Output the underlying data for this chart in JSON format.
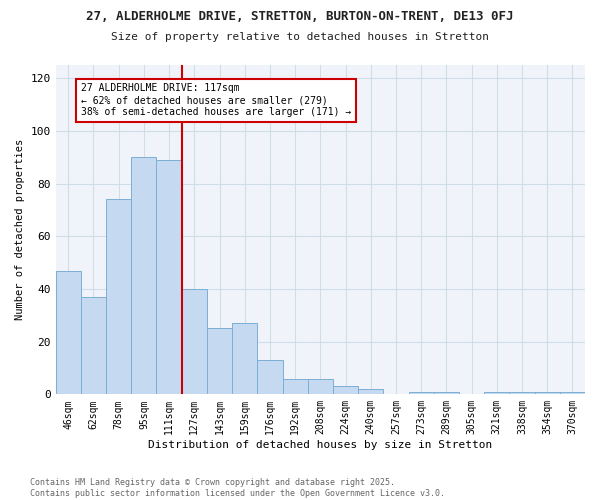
{
  "title": "27, ALDERHOLME DRIVE, STRETTON, BURTON-ON-TRENT, DE13 0FJ",
  "subtitle": "Size of property relative to detached houses in Stretton",
  "xlabel": "Distribution of detached houses by size in Stretton",
  "ylabel": "Number of detached properties",
  "categories": [
    "46sqm",
    "62sqm",
    "78sqm",
    "95sqm",
    "111sqm",
    "127sqm",
    "143sqm",
    "159sqm",
    "176sqm",
    "192sqm",
    "208sqm",
    "224sqm",
    "240sqm",
    "257sqm",
    "273sqm",
    "289sqm",
    "305sqm",
    "321sqm",
    "338sqm",
    "354sqm",
    "370sqm"
  ],
  "values": [
    47,
    37,
    74,
    90,
    89,
    40,
    25,
    27,
    13,
    6,
    6,
    3,
    2,
    0,
    1,
    1,
    0,
    1,
    1,
    1,
    1
  ],
  "bar_color": "#c5d9f0",
  "bar_edge_color": "#7bafd4",
  "vline_color": "#cc0000",
  "vline_x_index": 4.5,
  "annotation_text": "27 ALDERHOLME DRIVE: 117sqm\n← 62% of detached houses are smaller (279)\n38% of semi-detached houses are larger (171) →",
  "annotation_box_color": "#ffffff",
  "annotation_box_edge": "#cc0000",
  "ylim": [
    0,
    125
  ],
  "yticks": [
    0,
    20,
    40,
    60,
    80,
    100,
    120
  ],
  "grid_color": "#d0dce8",
  "bg_color": "#ffffff",
  "plot_bg_color": "#f0f4fa",
  "footnote": "Contains HM Land Registry data © Crown copyright and database right 2025.\nContains public sector information licensed under the Open Government Licence v3.0."
}
